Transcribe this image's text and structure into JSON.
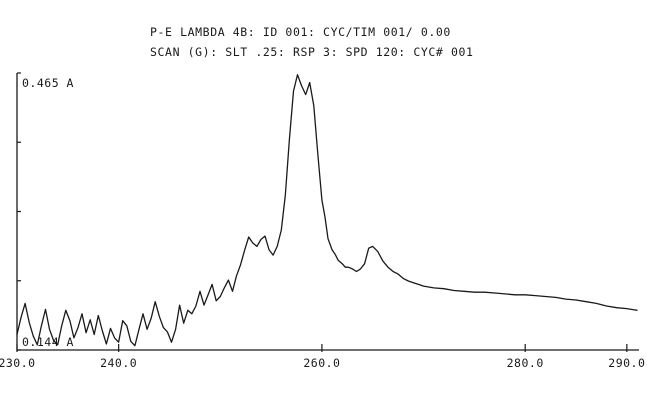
{
  "header": {
    "line1": "P-E LAMBDA 4B: ID 001: CYC/TIM 001/ 0.00",
    "line2": "SCAN (G): SLT .25: RSP 3: SPD 120: CYC# 001"
  },
  "chart_data": {
    "type": "line",
    "title": "",
    "xlabel": "",
    "ylabel": "",
    "xlim": [
      230.0,
      291.0
    ],
    "ylim": [
      0.144,
      0.465
    ],
    "x_ticks": [
      230.0,
      240.0,
      260.0,
      280.0,
      290.0
    ],
    "x_tick_labels": [
      "230.0",
      "240.0",
      "260.0",
      "280.0",
      "290.0"
    ],
    "y_top_label": "0.465  A",
    "y_bottom_label": "0.144  A",
    "y_unit": "A",
    "grid": false,
    "line_color": "#1a1a1a",
    "series": [
      {
        "x": [
          230.0,
          230.4,
          230.8,
          231.2,
          231.6,
          232.0,
          232.4,
          232.8,
          233.2,
          233.6,
          234.0,
          234.4,
          234.8,
          235.2,
          235.6,
          236.0,
          236.4,
          236.8,
          237.2,
          237.6,
          238.0,
          238.4,
          238.8,
          239.2,
          239.6,
          240.0,
          240.4,
          240.8,
          241.2,
          241.6,
          242.0,
          242.4,
          242.8,
          243.2,
          243.6,
          244.0,
          244.4,
          244.8,
          245.2,
          245.6,
          246.0,
          246.4,
          246.8,
          247.2,
          247.6,
          248.0,
          248.4,
          248.8,
          249.2,
          249.6,
          250.0,
          250.4,
          250.8,
          251.2,
          251.6,
          252.0,
          252.4,
          252.8,
          253.2,
          253.6,
          254.0,
          254.4,
          254.8,
          255.2,
          255.6,
          256.0,
          256.4,
          256.8,
          257.2,
          257.6,
          258.0,
          258.4,
          258.8,
          259.2,
          259.6,
          260.0,
          260.3,
          260.6,
          261.0,
          261.3,
          261.6,
          262.0,
          262.3,
          262.6,
          263.0,
          263.4,
          263.8,
          264.2,
          264.6,
          265.0,
          265.5,
          266.0,
          266.5,
          267.0,
          267.5,
          268.0,
          268.5,
          269.0,
          269.5,
          270.0,
          271.0,
          272.0,
          273.0,
          274.0,
          275.0,
          276.0,
          277.0,
          278.0,
          279.0,
          280.0,
          281.0,
          282.0,
          283.0,
          284.0,
          285.0,
          286.0,
          287.0,
          288.0,
          289.0,
          290.0,
          291.0
        ],
        "values": [
          0.162,
          0.182,
          0.198,
          0.176,
          0.16,
          0.15,
          0.172,
          0.191,
          0.168,
          0.155,
          0.15,
          0.172,
          0.19,
          0.178,
          0.158,
          0.17,
          0.186,
          0.164,
          0.179,
          0.162,
          0.184,
          0.166,
          0.151,
          0.169,
          0.158,
          0.153,
          0.178,
          0.172,
          0.154,
          0.149,
          0.168,
          0.186,
          0.168,
          0.181,
          0.2,
          0.183,
          0.17,
          0.165,
          0.153,
          0.168,
          0.196,
          0.175,
          0.19,
          0.186,
          0.195,
          0.212,
          0.196,
          0.208,
          0.22,
          0.201,
          0.206,
          0.216,
          0.225,
          0.212,
          0.23,
          0.243,
          0.26,
          0.275,
          0.268,
          0.264,
          0.272,
          0.276,
          0.26,
          0.254,
          0.264,
          0.283,
          0.323,
          0.388,
          0.444,
          0.463,
          0.45,
          0.44,
          0.454,
          0.427,
          0.37,
          0.318,
          0.298,
          0.273,
          0.26,
          0.255,
          0.248,
          0.244,
          0.24,
          0.24,
          0.238,
          0.235,
          0.238,
          0.244,
          0.262,
          0.264,
          0.258,
          0.247,
          0.24,
          0.235,
          0.232,
          0.227,
          0.224,
          0.222,
          0.22,
          0.218,
          0.216,
          0.215,
          0.213,
          0.212,
          0.211,
          0.211,
          0.21,
          0.209,
          0.208,
          0.208,
          0.207,
          0.206,
          0.205,
          0.203,
          0.202,
          0.2,
          0.198,
          0.195,
          0.193,
          0.192,
          0.19
        ]
      }
    ]
  }
}
